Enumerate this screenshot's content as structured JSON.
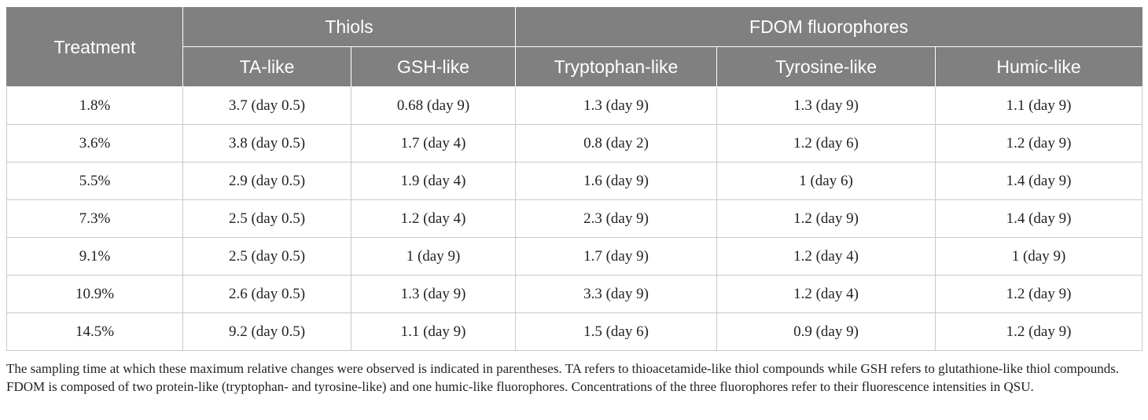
{
  "table": {
    "header_treatment": "Treatment",
    "group_thiols": "Thiols",
    "group_fdom": "FDOM fluorophores",
    "columns": [
      "TA-like",
      "GSH-like",
      "Tryptophan-like",
      "Tyrosine-like",
      "Humic-like"
    ],
    "rows": [
      [
        "1.8%",
        "3.7 (day 0.5)",
        "0.68 (day 9)",
        "1.3 (day 9)",
        "1.3 (day 9)",
        "1.1 (day 9)"
      ],
      [
        "3.6%",
        "3.8 (day 0.5)",
        "1.7 (day 4)",
        "0.8 (day 2)",
        "1.2 (day 6)",
        "1.2 (day 9)"
      ],
      [
        "5.5%",
        "2.9 (day 0.5)",
        "1.9 (day 4)",
        "1.6 (day 9)",
        "1 (day 6)",
        "1.4 (day 9)"
      ],
      [
        "7.3%",
        "2.5 (day 0.5)",
        "1.2 (day 4)",
        "2.3 (day 9)",
        "1.2 (day 9)",
        "1.4 (day 9)"
      ],
      [
        "9.1%",
        "2.5 (day 0.5)",
        "1 (day 9)",
        "1.7 (day 9)",
        "1.2 (day 4)",
        "1 (day 9)"
      ],
      [
        "10.9%",
        "2.6 (day 0.5)",
        "1.3 (day 9)",
        "3.3 (day 9)",
        "1.2 (day 4)",
        "1.2 (day 9)"
      ],
      [
        "14.5%",
        "9.2 (day 0.5)",
        "1.1 (day 9)",
        "1.5 (day 6)",
        "0.9 (day 9)",
        "1.2 (day 9)"
      ]
    ]
  },
  "footnote": "The sampling time at which these maximum relative changes were observed is indicated in parentheses. TA refers to thioacetamide-like thiol compounds while GSH refers to glutathione-like thiol compounds. FDOM is composed of two protein-like (tryptophan- and tyrosine-like) and one humic-like fluorophores. Concentrations of the three fluorophores refer to their fluorescence intensities in QSU.",
  "colors": {
    "header_bg": "#808080",
    "header_text": "#ffffff",
    "grid": "#c9c9c9"
  }
}
